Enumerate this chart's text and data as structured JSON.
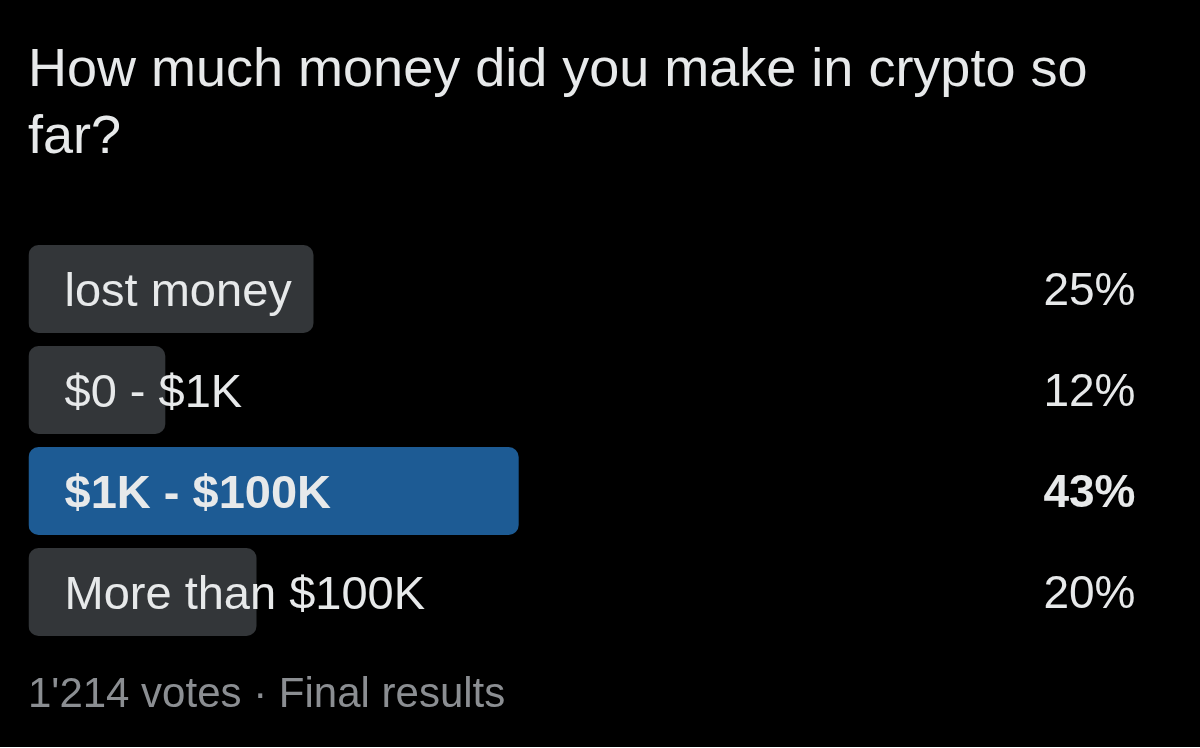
{
  "chart_data": {
    "type": "bar",
    "orientation": "horizontal",
    "title": "How much money did you make in crypto so far?",
    "categories": [
      "lost money",
      "$0 - $1K",
      "$1K - $100K",
      "More than $100K"
    ],
    "values": [
      25,
      12,
      43,
      20
    ],
    "value_labels": [
      "25%",
      "12%",
      "43%",
      "20%"
    ],
    "colors": [
      "#333639",
      "#333639",
      "#1d5b94",
      "#333639"
    ],
    "annotations": [
      "1'214 votes · Final results"
    ]
  }
}
